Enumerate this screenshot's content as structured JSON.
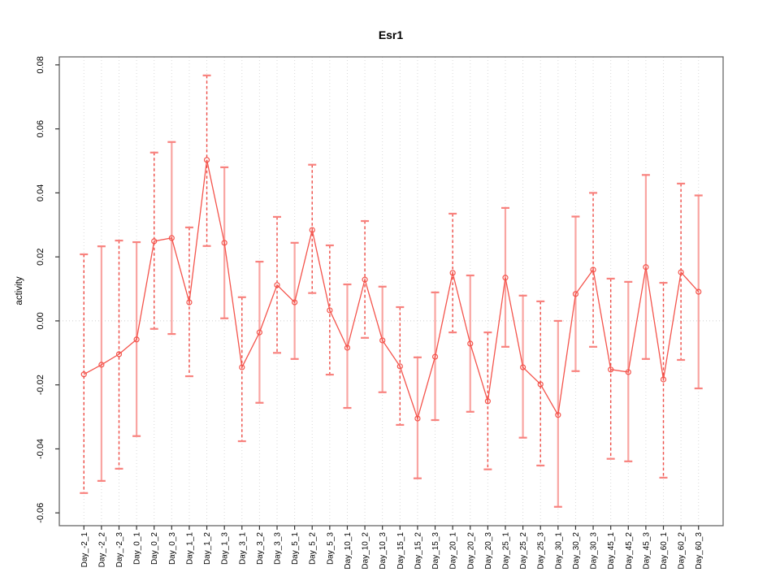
{
  "chart_data": {
    "type": "line",
    "title": "Esr1",
    "xlabel": "",
    "ylabel": "activity",
    "legend_position": "none",
    "grid": "vertical dotted gridline per category; dotted horizontal reference line at y=0",
    "ylim": [
      -0.064,
      0.0825
    ],
    "ytick_labels": [
      "0.08",
      "0.06",
      "0.04",
      "0.02",
      "0.00",
      "-0.02",
      "-0.04",
      "-0.06"
    ],
    "ytick_values": [
      0.08,
      0.06,
      0.04,
      0.02,
      0.0,
      -0.02,
      -0.04,
      -0.06
    ],
    "categories": [
      "Day_-2_1",
      "Day_-2_2",
      "Day_-2_3",
      "Day_0_1",
      "Day_0_2",
      "Day_0_3",
      "Day_1_1",
      "Day_1_2",
      "Day_1_3",
      "Day_3_1",
      "Day_3_2",
      "Day_3_3",
      "Day_5_1",
      "Day_5_2",
      "Day_5_3",
      "Day_10_1",
      "Day_10_2",
      "Day_10_3",
      "Day_15_1",
      "Day_15_2",
      "Day_15_3",
      "Day_20_1",
      "Day_20_2",
      "Day_20_3",
      "Day_25_1",
      "Day_25_2",
      "Day_25_3",
      "Day_30_1",
      "Day_30_2",
      "Day_30_3",
      "Day_45_1",
      "Day_45_2",
      "Day_45_3",
      "Day_60_1",
      "Day_60_2",
      "Day_60_3"
    ],
    "series": [
      {
        "name": "activity",
        "marker": "open-circle",
        "values": [
          -0.0167,
          -0.0137,
          -0.0104,
          -0.0058,
          0.0249,
          0.0259,
          0.0058,
          0.0503,
          0.0244,
          -0.0145,
          -0.0036,
          0.0112,
          0.0058,
          0.0284,
          0.0033,
          -0.0084,
          0.0129,
          -0.0061,
          -0.0142,
          -0.0305,
          -0.0112,
          0.015,
          -0.0071,
          -0.0251,
          0.0135,
          -0.0145,
          -0.0198,
          -0.0294,
          0.0084,
          0.016,
          -0.0152,
          -0.016,
          0.0168,
          -0.0183,
          0.0152,
          0.0091
        ],
        "error_lower": [
          -0.0538,
          -0.05,
          -0.0462,
          -0.036,
          -0.0025,
          -0.0041,
          -0.0173,
          0.0234,
          0.0008,
          -0.0376,
          -0.0256,
          -0.01,
          -0.0119,
          0.0087,
          -0.0168,
          -0.0272,
          -0.0053,
          -0.0223,
          -0.0325,
          -0.0492,
          -0.031,
          -0.0036,
          -0.0284,
          -0.0464,
          -0.0081,
          -0.0365,
          -0.0452,
          -0.0581,
          -0.0157,
          -0.0081,
          -0.0431,
          -0.0439,
          -0.0119,
          -0.049,
          -0.0122,
          -0.0211
        ],
        "error_upper": [
          0.0208,
          0.0233,
          0.0251,
          0.0246,
          0.0526,
          0.0559,
          0.0292,
          0.0767,
          0.048,
          0.0074,
          0.0185,
          0.0325,
          0.0244,
          0.0488,
          0.0236,
          0.0114,
          0.0312,
          0.0107,
          0.0043,
          -0.0114,
          0.0089,
          0.0335,
          0.0142,
          -0.0036,
          0.0353,
          0.0079,
          0.0061,
          0.0,
          0.0326,
          0.04,
          0.0132,
          0.0122,
          0.0456,
          0.0119,
          0.0429,
          0.0392
        ],
        "bar_style": [
          "dashed",
          "solid",
          "dashed",
          "solid",
          "dashed",
          "solid",
          "dashed",
          "dashed",
          "solid",
          "dashed",
          "solid",
          "dashed",
          "solid",
          "dashed",
          "dashed",
          "solid",
          "dashed",
          "solid",
          "dashed",
          "solid",
          "solid",
          "dashed",
          "solid",
          "dashed",
          "solid",
          "solid",
          "dashed",
          "solid",
          "solid",
          "dashed",
          "dashed",
          "solid",
          "solid",
          "dashed",
          "dashed",
          "solid"
        ]
      }
    ],
    "colors": {
      "line": "#f4544c",
      "marker": "#f4544c",
      "error_bar_solid": "#f9a5a2",
      "error_bar_dashed": "#ee4b45",
      "error_bar_cap": "#f8827e",
      "gridline": "#d9d9d9",
      "zero_line": "#cfcfcf",
      "frame": "#666666",
      "tick": "#333333"
    }
  }
}
